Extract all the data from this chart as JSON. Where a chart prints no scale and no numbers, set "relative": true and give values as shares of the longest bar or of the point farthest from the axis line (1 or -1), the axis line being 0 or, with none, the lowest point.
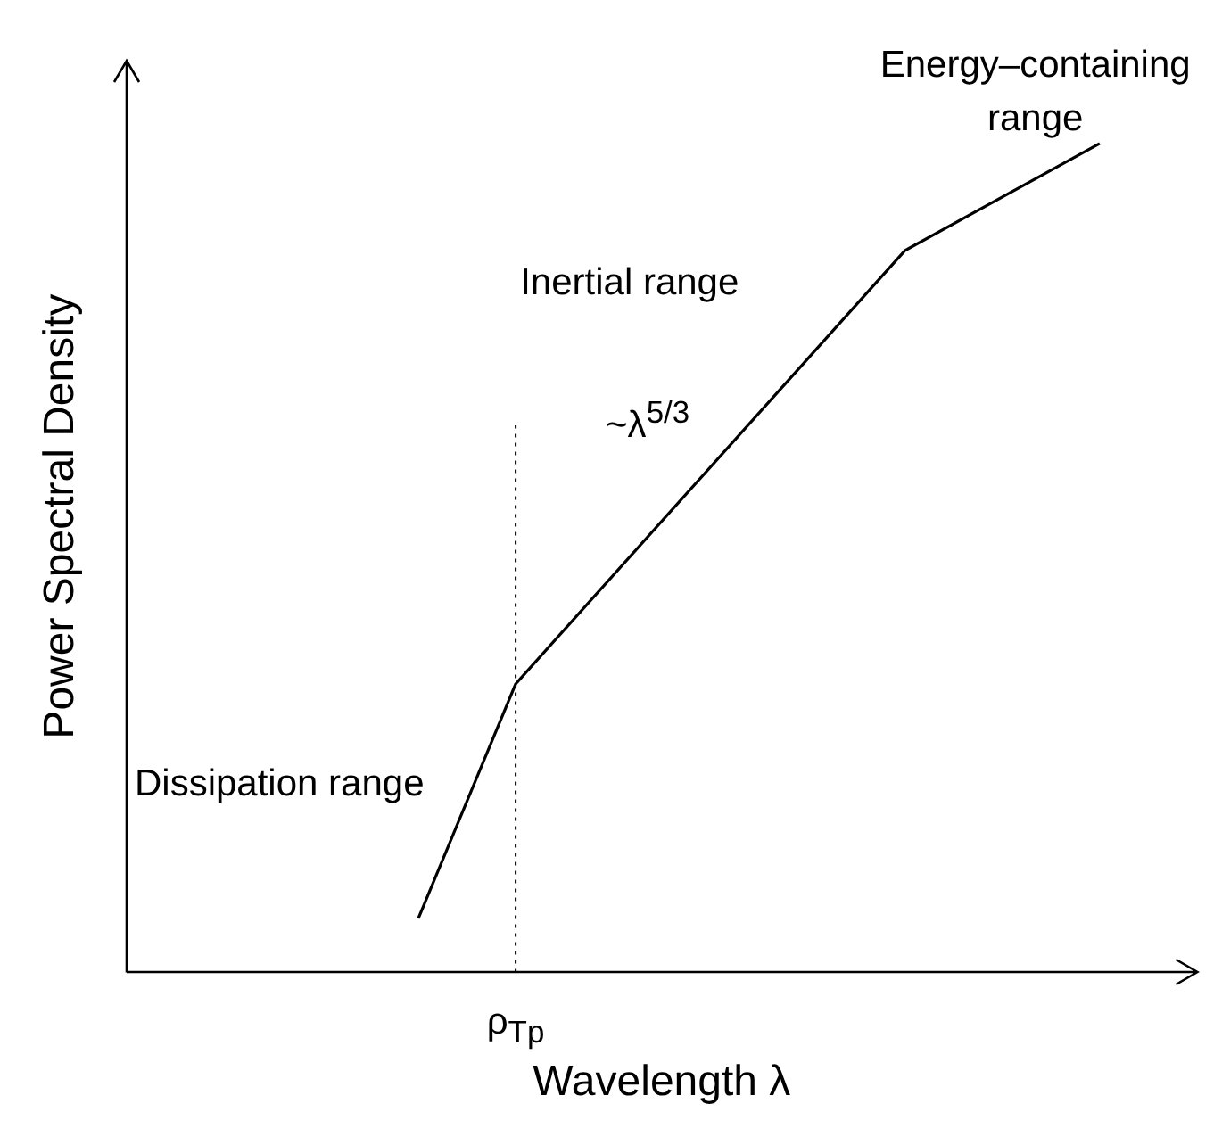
{
  "chart_data": {
    "type": "line",
    "relative": true,
    "xlabel": "Wavelength λ",
    "ylabel": "Power Spectral Density",
    "categories": [
      null,
      null,
      null,
      null,
      null,
      null,
      null,
      null,
      null,
      null,
      null,
      null
    ],
    "series": [
      {
        "color": "#000000",
        "values": [
          null,
          null,
          null,
          0.065,
          0.348,
          null,
          null,
          null,
          0.871,
          null,
          1,
          null
        ]
      }
    ],
    "marker": "none",
    "line_style": "solid",
    "grid": false,
    "legend": false,
    "annotations": [
      "Energy–containing range",
      "Inertial range",
      "~λ$^{5/3}$",
      "Dissipation range",
      "ρ$_{Tp}$"
    ]
  }
}
